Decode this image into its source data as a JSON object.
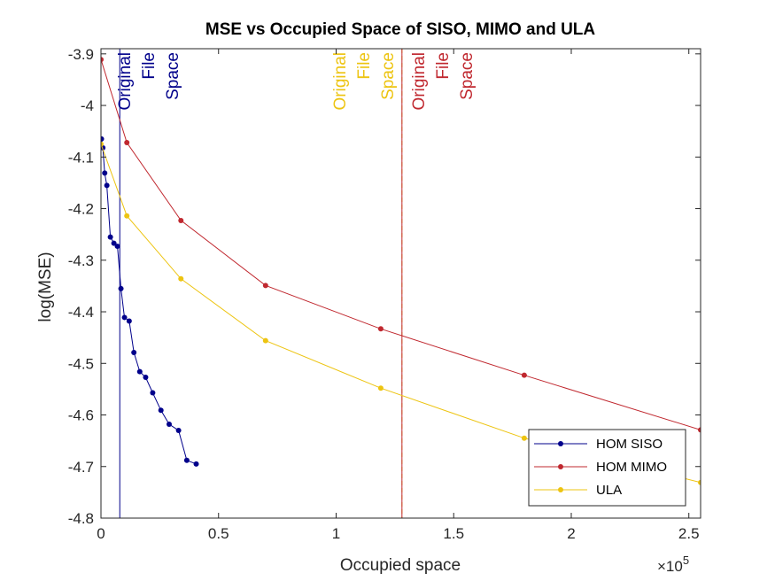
{
  "chart_data": {
    "type": "line",
    "title": "MSE vs Occupied Space of SISO, MIMO and ULA",
    "xlabel": "Occupied space",
    "ylabel": "log(MSE)",
    "x_exponent_label": "×10",
    "x_exponent_power": "5",
    "xlim": [
      0,
      255000
    ],
    "ylim": [
      -4.8,
      -3.89
    ],
    "x_ticks": [
      0,
      50000,
      100000,
      150000,
      200000,
      250000
    ],
    "x_tick_labels": [
      "0",
      "0.5",
      "1",
      "1.5",
      "2",
      "2.5"
    ],
    "y_ticks": [
      -4.8,
      -4.7,
      -4.6,
      -4.5,
      -4.4,
      -4.3,
      -4.2,
      -4.1,
      -4.0,
      -3.9
    ],
    "y_tick_labels": [
      "-4.8",
      "-4.7",
      "-4.6",
      "-4.5",
      "-4.4",
      "-4.3",
      "-4.2",
      "-4.1",
      "-4",
      "-3.9"
    ],
    "grid": false,
    "legend_position": "bottom-right",
    "series": [
      {
        "name": "HOM SISO",
        "color": "#00008b",
        "x": [
          200,
          800,
          1600,
          2500,
          4000,
          5500,
          7000,
          8500,
          10000,
          12000,
          14000,
          16500,
          19000,
          22000,
          25500,
          29000,
          33000,
          36500,
          40500
        ],
        "y": [
          -4.065,
          -4.082,
          -4.131,
          -4.155,
          -4.255,
          -4.267,
          -4.273,
          -4.355,
          -4.411,
          -4.418,
          -4.479,
          -4.516,
          -4.527,
          -4.557,
          -4.591,
          -4.618,
          -4.63,
          -4.688,
          -4.695
        ]
      },
      {
        "name": "HOM MIMO",
        "color": "#c0282f",
        "x": [
          0,
          11000,
          34000,
          70000,
          119000,
          180000,
          255000
        ],
        "y": [
          -3.911,
          -4.072,
          -4.223,
          -4.349,
          -4.433,
          -4.523,
          -4.629
        ]
      },
      {
        "name": "ULA",
        "color": "#edc411",
        "x": [
          0,
          11000,
          34000,
          70000,
          119000,
          180000,
          255000
        ],
        "y": [
          -4.075,
          -4.214,
          -4.336,
          -4.456,
          -4.548,
          -4.645,
          -4.731
        ]
      }
    ],
    "reference_lines": [
      {
        "x": 8000,
        "color": "#00008b",
        "label": [
          "Original",
          "File",
          "Space"
        ]
      },
      {
        "x": 128000,
        "color": "#edc411",
        "label": [
          "Original",
          "File",
          "Space"
        ]
      },
      {
        "x": 128000,
        "color": "#c0282f",
        "label": [
          "Original",
          "File",
          "Space"
        ]
      }
    ]
  }
}
